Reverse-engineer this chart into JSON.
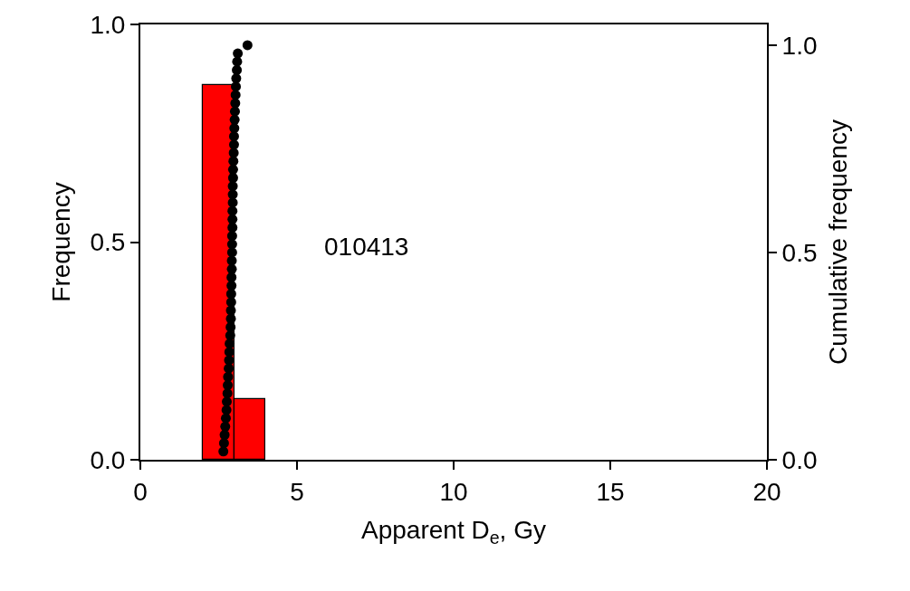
{
  "chart_data": {
    "type": "histogram",
    "xlabel": "Apparent D$_{e}$, Gy",
    "ylabel": "Frequency",
    "y2label": "Cumulative frequency",
    "bins": [
      2,
      3,
      4
    ],
    "values": [
      0.86,
      0.14
    ],
    "color": "#ff0000",
    "series": [
      {
        "type": "scatter",
        "axis": "y2",
        "color": "#000000",
        "marker": "circle",
        "x": [
          2.65,
          2.67,
          2.69,
          2.71,
          2.73,
          2.75,
          2.76,
          2.78,
          2.79,
          2.8,
          2.82,
          2.83,
          2.84,
          2.85,
          2.87,
          2.88,
          2.89,
          2.89,
          2.9,
          2.9,
          2.91,
          2.91,
          2.92,
          2.92,
          2.93,
          2.93,
          2.93,
          2.94,
          2.94,
          2.94,
          2.95,
          2.95,
          2.95,
          2.96,
          2.96,
          2.97,
          2.98,
          2.99,
          2.99,
          3.0,
          3.01,
          3.02,
          3.03,
          3.04,
          3.05,
          3.06,
          3.08,
          3.09,
          3.11,
          3.42
        ],
        "values": [
          0.02,
          0.04,
          0.06,
          0.08,
          0.1,
          0.12,
          0.14,
          0.16,
          0.18,
          0.2,
          0.22,
          0.24,
          0.26,
          0.28,
          0.3,
          0.32,
          0.34,
          0.36,
          0.38,
          0.4,
          0.42,
          0.44,
          0.46,
          0.48,
          0.5,
          0.52,
          0.54,
          0.56,
          0.58,
          0.6,
          0.62,
          0.64,
          0.66,
          0.68,
          0.7,
          0.72,
          0.74,
          0.76,
          0.78,
          0.8,
          0.82,
          0.84,
          0.86,
          0.88,
          0.9,
          0.92,
          0.94,
          0.96,
          0.98,
          1.0
        ]
      }
    ],
    "xlim": [
      0,
      20
    ],
    "xticks": [
      0,
      5,
      10,
      15,
      20
    ],
    "ylim": [
      0,
      1.0
    ],
    "yticks": [
      {
        "value": 0,
        "label": "0.0"
      },
      {
        "value": 0.5,
        "label": "0.5"
      },
      {
        "value": 1.0,
        "label": "1.0"
      }
    ],
    "y2lim": [
      0,
      1.05
    ],
    "y2ticks": [
      {
        "value": 0,
        "label": "0.0"
      },
      {
        "value": 0.5,
        "label": "0.5"
      },
      {
        "value": 1.0,
        "label": "1.0"
      }
    ],
    "annotations": [
      "010413"
    ]
  }
}
